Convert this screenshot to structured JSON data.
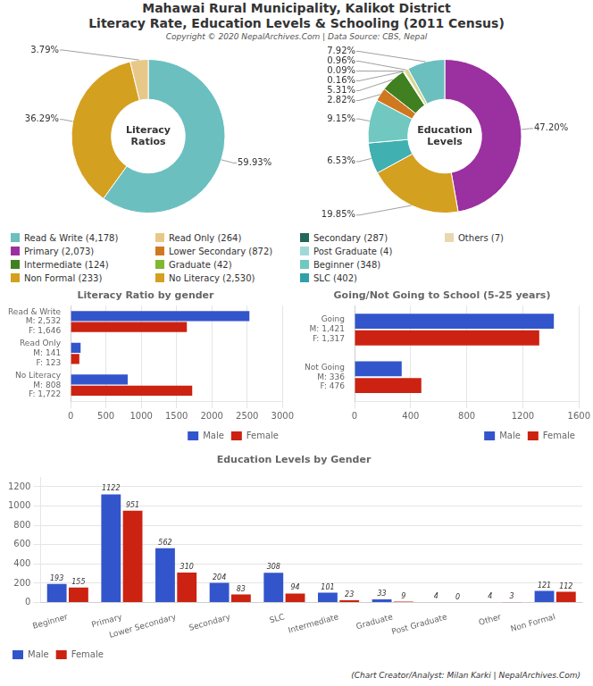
{
  "title": "Mahawai Rural Municipality, Kalikot District",
  "subtitle": "Literacy Rate, Education Levels & Schooling (2011 Census)",
  "annotations": [
    "Copyright © 2020 NepalArchives.Com | Data Source: CBS, Nepal",
    "(Chart Creator/Analyst: Milan Karki | NepalArchives.Com)"
  ],
  "chart_data": [
    {
      "type": "doughnut",
      "annotations": [
        "Literacy\nRatios"
      ],
      "values": [
        59.93,
        36.29,
        3.79,
        0.0
      ],
      "colors": [
        "#6bbfbf",
        "#d4a020",
        "#e8c888",
        "#b89010"
      ],
      "data_labels": true,
      "value_labels": [
        "59.93%",
        "36.29%",
        "3.79%",
        null
      ]
    },
    {
      "type": "doughnut",
      "annotations": [
        "Education\nLevels"
      ],
      "values": [
        47.2,
        19.85,
        6.53,
        9.15,
        2.82,
        5.31,
        0.16,
        0.09,
        0.96,
        7.92
      ],
      "colors": [
        "#9b30a0",
        "#d4a020",
        "#40b0b0",
        "#70c8c0",
        "#d07820",
        "#408020",
        "#e0e0a0",
        "#b0d8b0",
        "#d8d890",
        "#6bbfbf"
      ],
      "data_labels": true,
      "value_labels": [
        "47.20%",
        "19.85%",
        "6.53%",
        "9.15%",
        "2.82%",
        "5.31%",
        "0.16%",
        "0.09%",
        "0.96%",
        "7.92%"
      ]
    },
    {
      "type": "legend",
      "series": [
        {
          "name": "Read & Write (4,178)",
          "color": "#6bbfbf"
        },
        {
          "name": "Primary (2,073)",
          "color": "#9b30a0"
        },
        {
          "name": "Intermediate (124)",
          "color": "#408020"
        },
        {
          "name": "Non Formal (233)",
          "color": "#d4a020"
        },
        {
          "name": "Read Only (264)",
          "color": "#e8c888"
        },
        {
          "name": "Lower Secondary (872)",
          "color": "#d07820"
        },
        {
          "name": "Graduate (42)",
          "color": "#80b830"
        },
        {
          "name": "No Literacy (2,530)",
          "color": "#d4a020"
        },
        {
          "name": "Secondary (287)",
          "color": "#206858"
        },
        {
          "name": "Post Graduate (4)",
          "color": "#a0d8d8"
        },
        {
          "name": "Beginner (348)",
          "color": "#70c8c0"
        },
        {
          "name": "SLC (402)",
          "color": "#30a0a8"
        },
        {
          "name": "Others (7)",
          "color": "#e8d8b0"
        }
      ]
    },
    {
      "type": "bar",
      "orientation": "horizontal",
      "title": "Literacy Ratio by gender",
      "categories": [
        "Read & Write\nM: 2,532\nF: 1,646",
        "Read Only\nM: 141\nF: 123",
        "No Literacy\nM: 808\nF: 1,722"
      ],
      "series": [
        {
          "name": "Male",
          "color": "#3355cc",
          "values": [
            2532,
            141,
            808
          ]
        },
        {
          "name": "Female",
          "color": "#cc2211",
          "values": [
            1646,
            123,
            1722
          ]
        }
      ],
      "xlim": [
        0,
        3000
      ],
      "xticks": [
        0,
        500,
        1000,
        1500,
        2000,
        2500,
        3000
      ],
      "grid": true,
      "legend": "lower right"
    },
    {
      "type": "bar",
      "orientation": "horizontal",
      "title": "Going/Not Going to School (5-25 years)",
      "categories": [
        "Going\nM: 1,421\nF: 1,317",
        "Not Going\nM: 336\nF: 476"
      ],
      "series": [
        {
          "name": "Male",
          "color": "#3355cc",
          "values": [
            1421,
            336
          ]
        },
        {
          "name": "Female",
          "color": "#cc2211",
          "values": [
            1317,
            476
          ]
        }
      ],
      "xlim": [
        0,
        1600
      ],
      "xticks": [
        0,
        400,
        800,
        1200,
        1600
      ],
      "grid": true,
      "legend": "lower right"
    },
    {
      "type": "bar",
      "title": "Education Levels by Gender",
      "categories": [
        "Beginner",
        "Primary",
        "Lower Secondary",
        "Secondary",
        "SLC",
        "Intermediate",
        "Graduate",
        "Post Graduate",
        "Other",
        "Non Formal"
      ],
      "series": [
        {
          "name": "Male",
          "color": "#3355cc",
          "values": [
            193,
            1122,
            562,
            204,
            308,
            101,
            33,
            4,
            4,
            121
          ]
        },
        {
          "name": "Female",
          "color": "#cc2211",
          "values": [
            155,
            951,
            310,
            83,
            94,
            23,
            9,
            0,
            3,
            112
          ]
        }
      ],
      "ylim": [
        0,
        1300
      ],
      "yticks": [
        0,
        200,
        400,
        600,
        800,
        1000,
        1200
      ],
      "grid": true,
      "legend": "lower left",
      "data_labels": true
    }
  ]
}
